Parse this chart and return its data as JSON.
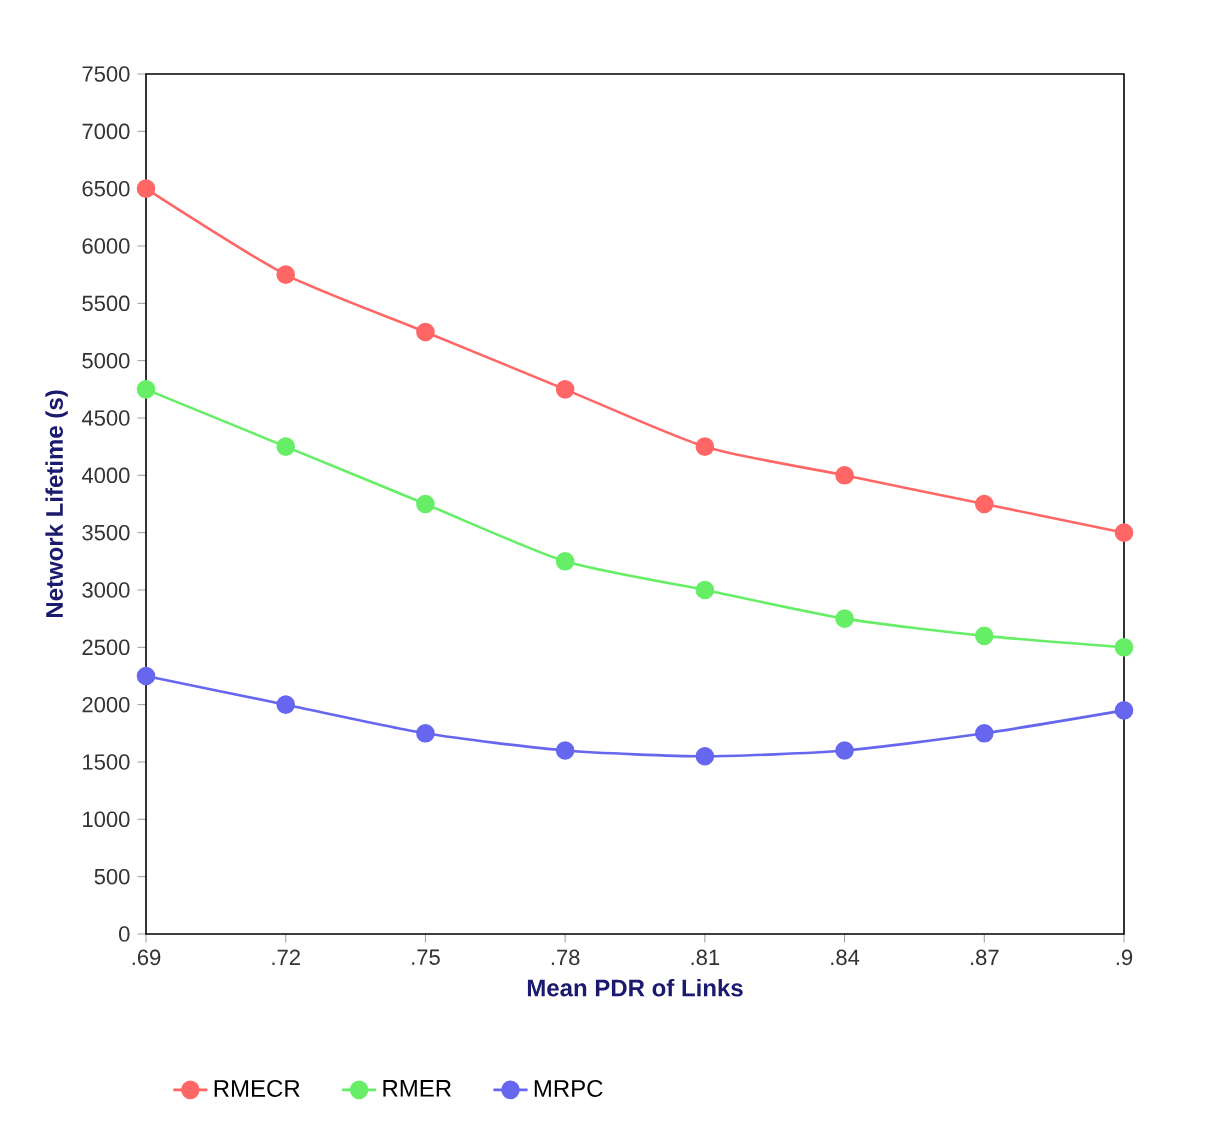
{
  "chart_data": {
    "type": "line",
    "xlabel": "Mean PDR of Links",
    "ylabel": "Network Lifetime (s)",
    "x": [
      0.69,
      0.72,
      0.75,
      0.78,
      0.81,
      0.84,
      0.87,
      0.9
    ],
    "series": [
      {
        "name": "RMECR",
        "color": "#ff6666",
        "values": [
          6500,
          5750,
          5250,
          4750,
          4250,
          4000,
          3750,
          3500
        ]
      },
      {
        "name": "RMER",
        "color": "#66ee66",
        "values": [
          4750,
          4250,
          3750,
          3250,
          3000,
          2750,
          2600,
          2500
        ]
      },
      {
        "name": "MRPC",
        "color": "#6666ee",
        "values": [
          2250,
          2000,
          1750,
          1600,
          1550,
          1600,
          1750,
          1950
        ]
      }
    ],
    "xlim": [
      0.69,
      0.9
    ],
    "xticks": [
      {
        "value": 0.69,
        "label": ".69"
      },
      {
        "value": 0.72,
        "label": ".72"
      },
      {
        "value": 0.75,
        "label": ".75"
      },
      {
        "value": 0.78,
        "label": ".78"
      },
      {
        "value": 0.81,
        "label": ".81"
      },
      {
        "value": 0.84,
        "label": ".84"
      },
      {
        "value": 0.87,
        "label": ".87"
      },
      {
        "value": 0.9,
        "label": ".9"
      }
    ],
    "ylim": [
      0,
      7500
    ],
    "yticks": [
      0,
      500,
      1000,
      1500,
      2000,
      2500,
      3000,
      3500,
      4000,
      4500,
      5000,
      5500,
      6000,
      6500,
      7000,
      7500
    ],
    "marker": "circle",
    "line_style": "solid",
    "legend": "bottom",
    "grid": false
  }
}
